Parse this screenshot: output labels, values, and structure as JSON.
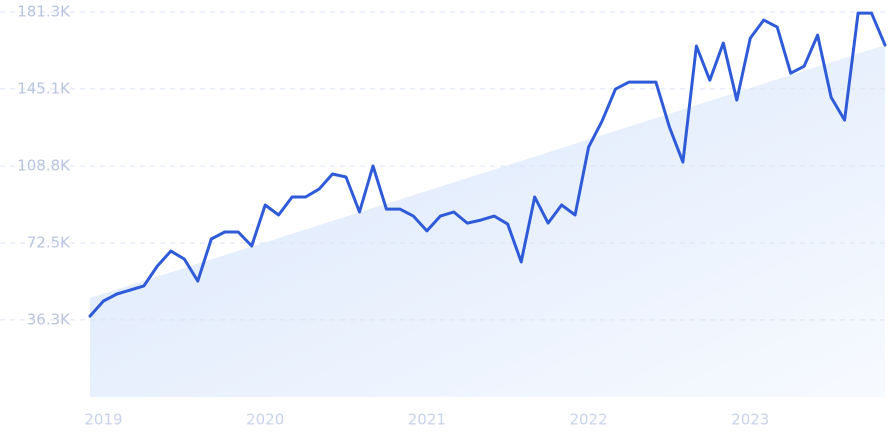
{
  "chart_data": {
    "type": "line",
    "categories": [
      null,
      "2019",
      null,
      null,
      null,
      null,
      null,
      null,
      null,
      null,
      null,
      null,
      null,
      "2020",
      null,
      null,
      null,
      null,
      null,
      null,
      null,
      null,
      null,
      null,
      null,
      "2021",
      null,
      null,
      null,
      null,
      null,
      null,
      null,
      null,
      null,
      null,
      null,
      "2022",
      null,
      null,
      null,
      null,
      null,
      null,
      null,
      null,
      null,
      null,
      null,
      "2023",
      null,
      null,
      null,
      null,
      null,
      null,
      null,
      null,
      null,
      null
    ],
    "series": [
      {
        "color": "#2f5bd8",
        "values": [
          38100,
          45200,
          48500,
          50400,
          52300,
          61700,
          68700,
          65000,
          54600,
          74400,
          77700,
          77700,
          71100,
          90400,
          85700,
          94200,
          94200,
          97900,
          105000,
          103600,
          87100,
          108800,
          88500,
          88500,
          85200,
          78200,
          85200,
          87100,
          81900,
          83300,
          85200,
          81400,
          63600,
          94200,
          81900,
          90400,
          85700,
          117700,
          129900,
          145000,
          148300,
          148300,
          148300,
          127100,
          110600,
          165300,
          149200,
          166700,
          139800,
          169000,
          177500,
          174200,
          152500,
          155800,
          170400,
          141200,
          130400,
          180800,
          180800,
          165700
        ]
      }
    ],
    "trend": [
      46600,
      165700
    ],
    "ylim": [
      0,
      181300
    ],
    "yticks": [
      {
        "value": 36300,
        "label": "36.3K"
      },
      {
        "value": 72500,
        "label": "72.5K"
      },
      {
        "value": 108800,
        "label": "108.8K"
      },
      {
        "value": 145100,
        "label": "145.1K"
      },
      {
        "value": 181300,
        "label": "181.3K"
      }
    ],
    "grid": true
  }
}
